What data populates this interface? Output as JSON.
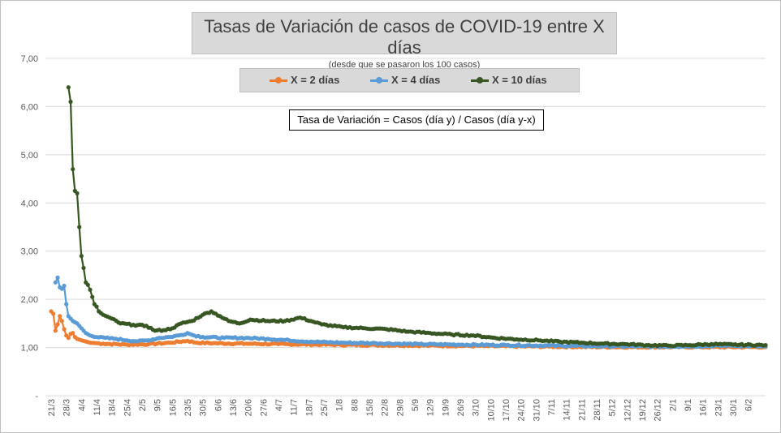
{
  "chart_data": {
    "type": "line",
    "title": "Tasas de Variación de casos de COVID-19 entre X días",
    "subtitle": "(desde que se pasaron los 100 casos)",
    "annotation": "Tasa de Variación = Casos (día y) / Casos (día y-x)",
    "ylim": [
      0,
      7
    ],
    "yticks": [
      "-",
      "1,00",
      "2,00",
      "3,00",
      "4,00",
      "5,00",
      "6,00",
      "7,00"
    ],
    "start_date": "21/3",
    "xticks": [
      "21/3",
      "28/3",
      "4/4",
      "11/4",
      "18/4",
      "25/4",
      "2/5",
      "9/5",
      "16/5",
      "23/5",
      "30/5",
      "6/6",
      "13/6",
      "20/6",
      "27/6",
      "4/7",
      "11/7",
      "18/7",
      "25/7",
      "1/8",
      "8/8",
      "15/8",
      "22/8",
      "29/8",
      "5/9",
      "12/9",
      "19/9",
      "26/9",
      "3/10",
      "10/10",
      "17/10",
      "24/10",
      "31/10",
      "7/11",
      "14/11",
      "21/11",
      "28/11",
      "5/12",
      "12/12",
      "19/12",
      "26/12",
      "2/1",
      "9/1",
      "16/1",
      "23/1",
      "30/1",
      "6/2"
    ],
    "total_days": 330,
    "legend_position": "top",
    "grid": true,
    "series": [
      {
        "name": "X = 2 días",
        "color": "#ed7d31",
        "start_day": 0,
        "keypoints": [
          [
            0,
            1.75
          ],
          [
            1,
            1.7
          ],
          [
            2,
            1.35
          ],
          [
            3,
            1.48
          ],
          [
            4,
            1.65
          ],
          [
            5,
            1.55
          ],
          [
            6,
            1.38
          ],
          [
            7,
            1.25
          ],
          [
            8,
            1.2
          ],
          [
            9,
            1.28
          ],
          [
            10,
            1.3
          ],
          [
            11,
            1.22
          ],
          [
            12,
            1.18
          ],
          [
            14,
            1.15
          ],
          [
            18,
            1.1
          ],
          [
            24,
            1.08
          ],
          [
            35,
            1.06
          ],
          [
            45,
            1.07
          ],
          [
            55,
            1.1
          ],
          [
            63,
            1.14
          ],
          [
            67,
            1.1
          ],
          [
            75,
            1.09
          ],
          [
            90,
            1.08
          ],
          [
            105,
            1.07
          ],
          [
            125,
            1.06
          ],
          [
            150,
            1.05
          ],
          [
            175,
            1.04
          ],
          [
            200,
            1.03
          ],
          [
            230,
            1.02
          ],
          [
            260,
            1.01
          ],
          [
            300,
            1.01
          ],
          [
            330,
            1.01
          ]
        ]
      },
      {
        "name": "X = 4 días",
        "color": "#5b9bd5",
        "start_day": 2,
        "keypoints": [
          [
            2,
            2.35
          ],
          [
            3,
            2.45
          ],
          [
            4,
            2.25
          ],
          [
            5,
            2.22
          ],
          [
            6,
            2.28
          ],
          [
            7,
            1.9
          ],
          [
            8,
            1.65
          ],
          [
            10,
            1.55
          ],
          [
            12,
            1.5
          ],
          [
            14,
            1.4
          ],
          [
            16,
            1.3
          ],
          [
            18,
            1.25
          ],
          [
            20,
            1.22
          ],
          [
            25,
            1.2
          ],
          [
            30,
            1.18
          ],
          [
            35,
            1.15
          ],
          [
            40,
            1.13
          ],
          [
            45,
            1.15
          ],
          [
            50,
            1.2
          ],
          [
            55,
            1.22
          ],
          [
            60,
            1.26
          ],
          [
            63,
            1.3
          ],
          [
            66,
            1.25
          ],
          [
            70,
            1.22
          ],
          [
            80,
            1.2
          ],
          [
            90,
            1.2
          ],
          [
            100,
            1.18
          ],
          [
            110,
            1.15
          ],
          [
            120,
            1.12
          ],
          [
            135,
            1.1
          ],
          [
            150,
            1.09
          ],
          [
            170,
            1.07
          ],
          [
            190,
            1.06
          ],
          [
            210,
            1.05
          ],
          [
            230,
            1.04
          ],
          [
            250,
            1.03
          ],
          [
            280,
            1.02
          ],
          [
            300,
            1.03
          ],
          [
            315,
            1.04
          ],
          [
            330,
            1.02
          ]
        ]
      },
      {
        "name": "X = 10 días",
        "color": "#375623",
        "start_day": 8,
        "keypoints": [
          [
            8,
            6.4
          ],
          [
            9,
            6.1
          ],
          [
            10,
            4.7
          ],
          [
            11,
            4.25
          ],
          [
            12,
            4.2
          ],
          [
            13,
            3.5
          ],
          [
            14,
            2.9
          ],
          [
            15,
            2.65
          ],
          [
            16,
            2.35
          ],
          [
            17,
            2.3
          ],
          [
            18,
            2.2
          ],
          [
            19,
            2.05
          ],
          [
            20,
            1.9
          ],
          [
            21,
            1.85
          ],
          [
            22,
            1.75
          ],
          [
            24,
            1.68
          ],
          [
            28,
            1.6
          ],
          [
            32,
            1.5
          ],
          [
            38,
            1.47
          ],
          [
            44,
            1.45
          ],
          [
            48,
            1.35
          ],
          [
            52,
            1.36
          ],
          [
            56,
            1.4
          ],
          [
            60,
            1.5
          ],
          [
            65,
            1.55
          ],
          [
            70,
            1.68
          ],
          [
            74,
            1.75
          ],
          [
            78,
            1.65
          ],
          [
            82,
            1.55
          ],
          [
            87,
            1.5
          ],
          [
            92,
            1.58
          ],
          [
            100,
            1.55
          ],
          [
            108,
            1.55
          ],
          [
            115,
            1.62
          ],
          [
            120,
            1.55
          ],
          [
            125,
            1.48
          ],
          [
            135,
            1.42
          ],
          [
            145,
            1.4
          ],
          [
            155,
            1.38
          ],
          [
            165,
            1.33
          ],
          [
            175,
            1.3
          ],
          [
            185,
            1.27
          ],
          [
            195,
            1.25
          ],
          [
            205,
            1.2
          ],
          [
            215,
            1.17
          ],
          [
            225,
            1.15
          ],
          [
            235,
            1.12
          ],
          [
            245,
            1.1
          ],
          [
            255,
            1.08
          ],
          [
            265,
            1.07
          ],
          [
            275,
            1.05
          ],
          [
            285,
            1.04
          ],
          [
            295,
            1.05
          ],
          [
            305,
            1.07
          ],
          [
            315,
            1.06
          ],
          [
            330,
            1.05
          ]
        ]
      }
    ]
  }
}
